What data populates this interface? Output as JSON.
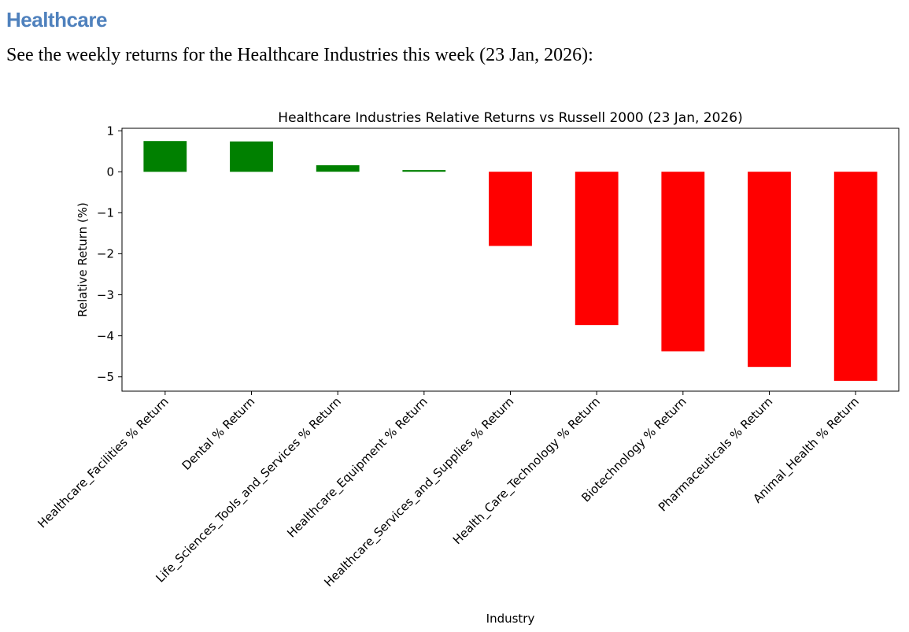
{
  "page": {
    "heading": "Healthcare",
    "description": "See the weekly returns for the Healthcare Industries this week (23 Jan, 2026):"
  },
  "colors": {
    "heading_text": "#4f81bd",
    "body_text": "#000000",
    "positive_bar": "#008000",
    "negative_bar": "#ff0000",
    "axis": "#000000"
  },
  "chart_data": {
    "type": "bar",
    "title": "Healthcare Industries Relative Returns vs Russell 2000 (23 Jan, 2026)",
    "xlabel": "Industry",
    "ylabel": "Relative Return (%)",
    "categories": [
      "Healthcare_Facilities % Return",
      "Dental % Return",
      "Life_Sciences_Tools_and_Services % Return",
      "Healthcare_Equipment % Return",
      "Healthcare_Services_and_Supplies % Return",
      "Health_Care_Technology % Return",
      "Biotechnology % Return",
      "Pharmaceuticals % Return",
      "Animal_Health % Return"
    ],
    "values": [
      0.75,
      0.74,
      0.16,
      0.04,
      -1.81,
      -3.74,
      -4.38,
      -4.76,
      -5.1
    ],
    "yticks": [
      1,
      0,
      -1,
      -2,
      -3,
      -4,
      -5
    ],
    "ylim": [
      -5.35,
      1.06
    ],
    "grid": false,
    "legend": "none",
    "tick_label_rotation": 45,
    "bar_width_fraction": 0.5,
    "positive_color": "#008000",
    "negative_color": "#ff0000"
  }
}
